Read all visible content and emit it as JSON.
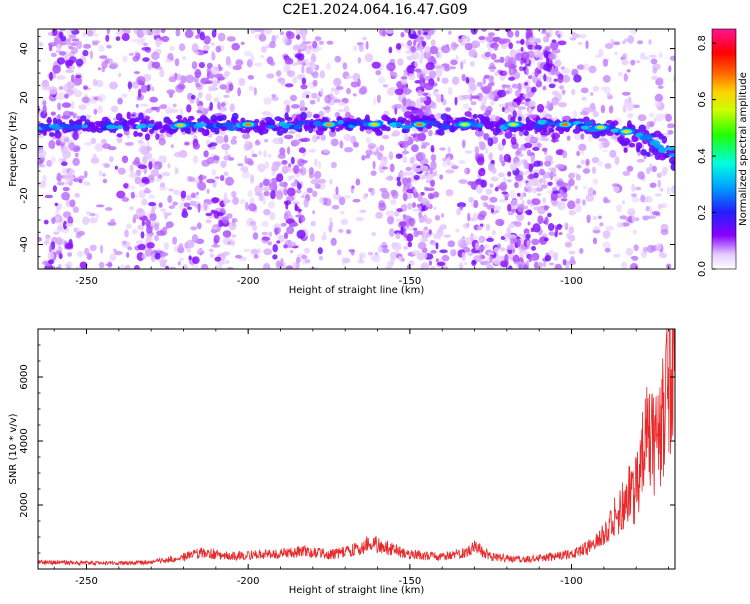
{
  "figure": {
    "title": "C2E1.2024.064.16.47.G09"
  },
  "chart_data": [
    {
      "type": "heatmap",
      "title": "C2E1.2024.064.16.47.G09",
      "xlabel": "Height of straight line (km)",
      "ylabel": "Frequency (Hz)",
      "xlim": [
        -265,
        -68
      ],
      "ylim": [
        -50,
        48
      ],
      "xticks": [
        -250,
        -200,
        -150,
        -100
      ],
      "yticks": [
        -40,
        -20,
        0,
        20,
        40
      ],
      "grid": false,
      "colorbar": {
        "label": "Normalized spectral amplitude",
        "range": [
          0.0,
          0.85
        ],
        "ticks": [
          0.0,
          0.2,
          0.4,
          0.6,
          0.8
        ],
        "tick_labels": [
          "0.0",
          "0.2",
          "0.4",
          "0.6",
          "0.8"
        ],
        "colormap": "rainbow (white → violet → blue → cyan → green → yellow → orange → red → magenta)"
      },
      "band": {
        "description": "strong narrow signal band",
        "frequency_hz_by_height": [
          {
            "x": -265,
            "y": 8
          },
          {
            "x": -200,
            "y": 9
          },
          {
            "x": -150,
            "y": 9
          },
          {
            "x": -100,
            "y": 9
          },
          {
            "x": -85,
            "y": 7
          },
          {
            "x": -78,
            "y": 4
          },
          {
            "x": -72,
            "y": -1
          },
          {
            "x": -68,
            "y": -3
          }
        ],
        "peak_heights_km": [
          -221,
          -200,
          -175,
          -161,
          -147,
          -133,
          -118,
          -102,
          -91,
          -83
        ]
      },
      "noise_columns_km": [
        -258,
        -232,
        -213,
        -185,
        -150,
        -146,
        -128,
        -118,
        -114,
        -107
      ]
    },
    {
      "type": "line",
      "xlabel": "Height of straight line (km)",
      "ylabel": "SNR (10 * v/v)",
      "xlim": [
        -265,
        -68
      ],
      "ylim": [
        0,
        7500
      ],
      "xticks": [
        -250,
        -200,
        -150,
        -100
      ],
      "yticks": [
        2000,
        4000,
        6000
      ],
      "grid": false,
      "series": [
        {
          "color": "#e8292a",
          "x": [
            -265,
            -250,
            -240,
            -230,
            -220,
            -215,
            -205,
            -200,
            -190,
            -182,
            -175,
            -165,
            -162,
            -158,
            -150,
            -140,
            -133,
            -130,
            -125,
            -115,
            -105,
            -100,
            -95,
            -90,
            -85,
            -80,
            -78,
            -76,
            -74,
            -72,
            -70,
            -68
          ],
          "y": [
            220,
            190,
            180,
            200,
            380,
            520,
            400,
            430,
            480,
            560,
            440,
            650,
            820,
            700,
            450,
            380,
            550,
            720,
            380,
            300,
            380,
            500,
            650,
            1100,
            1800,
            2600,
            3600,
            4200,
            3800,
            4400,
            6200,
            7200
          ]
        }
      ]
    }
  ]
}
